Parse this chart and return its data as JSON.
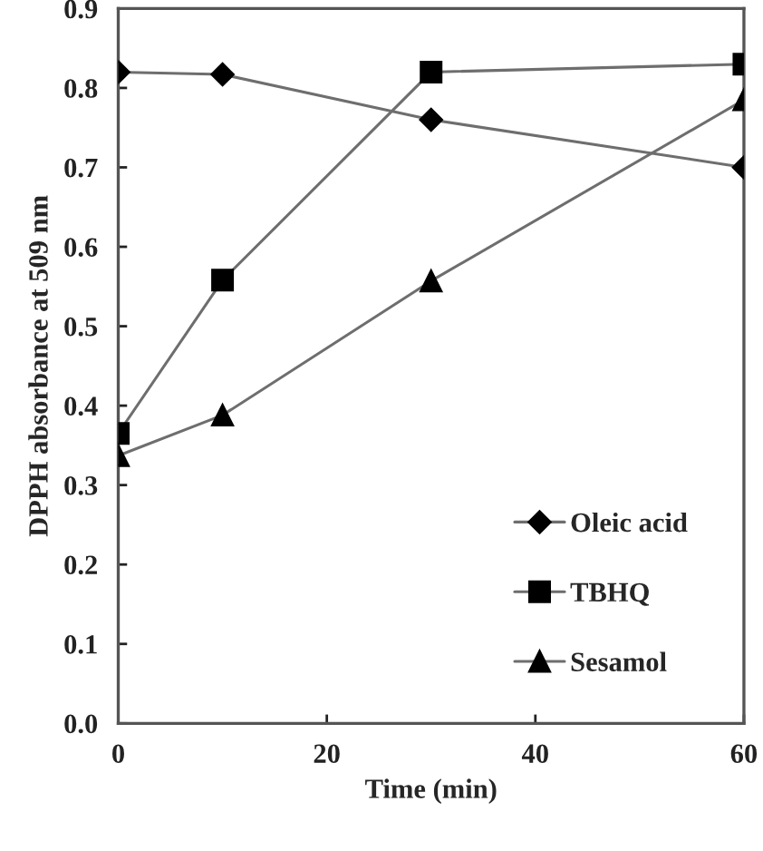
{
  "chart_data": {
    "type": "line",
    "xlabel": "Time (min)",
    "ylabel": "DPPH absorbance at 509 nm",
    "x": [
      0,
      10,
      30,
      60
    ],
    "xlim": [
      0,
      60
    ],
    "xticks": [
      0,
      20,
      40,
      60
    ],
    "ylim": [
      0,
      0.9
    ],
    "yticks": [
      {
        "value": 0,
        "label": "0.0"
      },
      0.1,
      0.2,
      0.3,
      0.4,
      0.5,
      0.6,
      0.7,
      0.8,
      0.9
    ],
    "grid": false,
    "legend": "bottom right",
    "series": [
      {
        "name": "Oleic acid",
        "color": "#000000",
        "marker": "diamond",
        "values": [
          0.82,
          0.817,
          0.76,
          0.7
        ]
      },
      {
        "name": "TBHQ",
        "color": "#000000",
        "marker": "square",
        "values": [
          0.365,
          0.558,
          0.82,
          0.83
        ]
      },
      {
        "name": "Sesamol",
        "color": "#000000",
        "marker": "triangle",
        "values": [
          0.337,
          0.388,
          0.557,
          0.785
        ]
      }
    ]
  }
}
